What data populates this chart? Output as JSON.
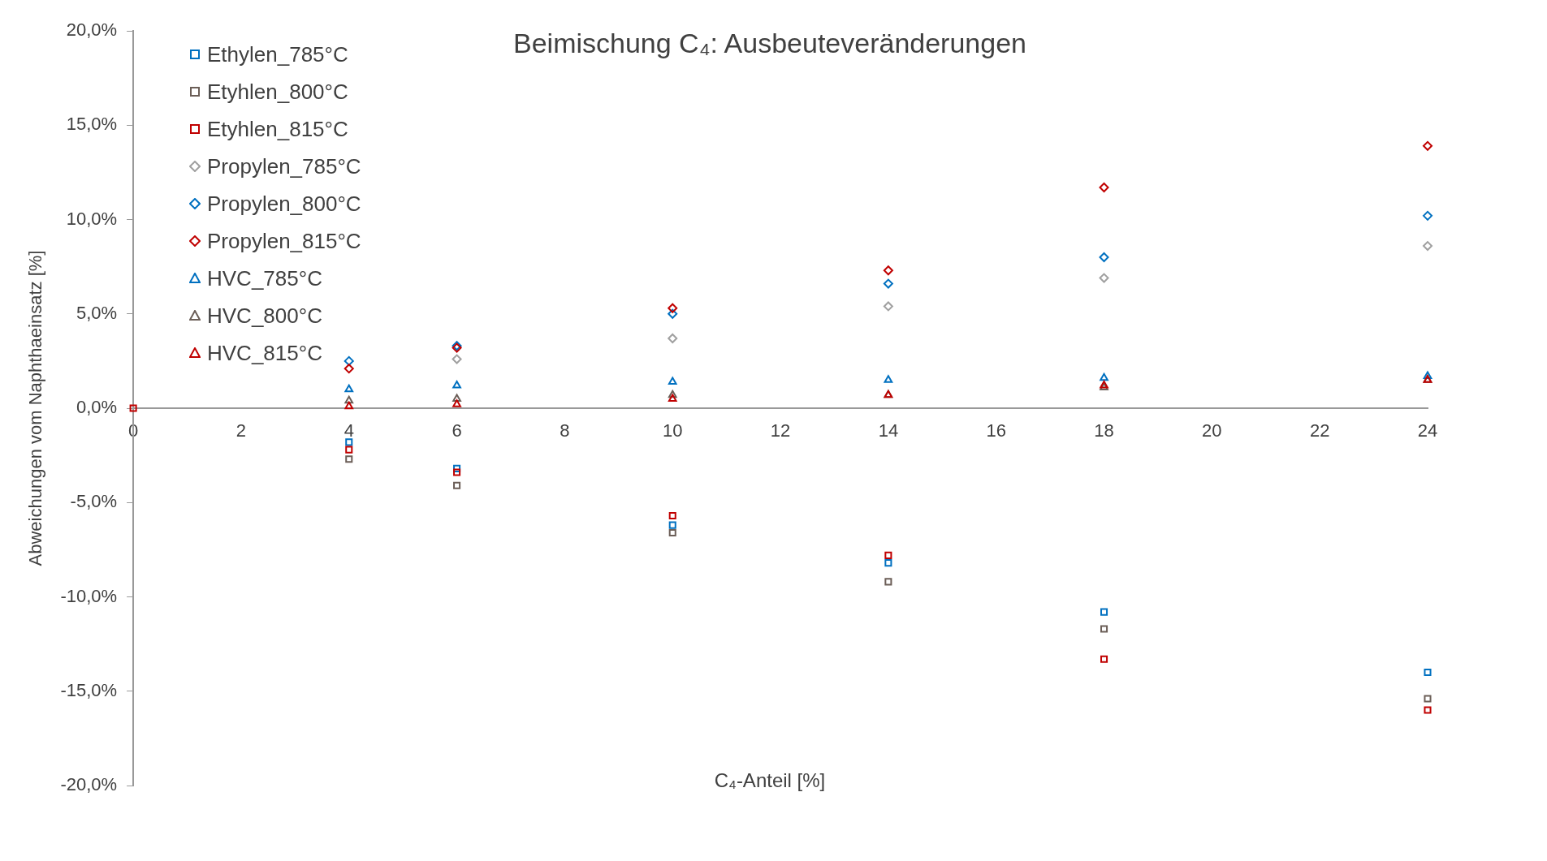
{
  "chart_data": {
    "type": "scatter",
    "title": "Beimischung C₄: Ausbeuteveränderungen",
    "xlabel": "C₄-Anteil  [%]",
    "ylabel": "Abweichungen vom Naphthaeinsatz [%]",
    "x": [
      0,
      4,
      6,
      10,
      14,
      18,
      24
    ],
    "xlim": [
      0,
      24
    ],
    "xticks": [
      0,
      2,
      4,
      6,
      8,
      10,
      12,
      14,
      16,
      18,
      20,
      22,
      24
    ],
    "ylim": [
      -20,
      20
    ],
    "yticks": [
      {
        "value": -20,
        "label": "-20,0%"
      },
      {
        "value": -15,
        "label": "-15,0%"
      },
      {
        "value": -10,
        "label": "-10,0%"
      },
      {
        "value": -5,
        "label": "-5,0%"
      },
      {
        "value": 0,
        "label": "0,0%"
      },
      {
        "value": 5,
        "label": "5,0%"
      },
      {
        "value": 10,
        "label": "10,0%"
      },
      {
        "value": 15,
        "label": "15,0%"
      },
      {
        "value": 20,
        "label": "20,0%"
      }
    ],
    "grid": false,
    "legend": "top left",
    "series": [
      {
        "name": "Ethylen_785°C",
        "color": "#0070c0",
        "marker": "square",
        "values": [
          null,
          -1.8,
          -3.2,
          -6.2,
          -8.2,
          -10.8,
          -14.0
        ]
      },
      {
        "name": "Etyhlen_800°C",
        "color": "#6b5e57",
        "marker": "square",
        "values": [
          null,
          -2.7,
          -4.1,
          -6.6,
          -9.2,
          -11.7,
          -15.4
        ]
      },
      {
        "name": "Etyhlen_815°C",
        "color": "#c00000",
        "marker": "square",
        "values": [
          0,
          -2.2,
          -3.4,
          -5.7,
          -7.8,
          -13.3,
          -16.0
        ]
      },
      {
        "name": "Propylen_785°C",
        "color": "#a0a0a0",
        "marker": "diamond",
        "values": [
          null,
          null,
          2.6,
          3.7,
          5.4,
          6.9,
          8.6
        ]
      },
      {
        "name": "Propylen_800°C",
        "color": "#0070c0",
        "marker": "diamond",
        "values": [
          null,
          2.5,
          3.3,
          5.0,
          6.6,
          8.0,
          10.2
        ]
      },
      {
        "name": "Propylen_815°C",
        "color": "#c00000",
        "marker": "diamond",
        "values": [
          null,
          2.1,
          3.2,
          5.3,
          7.3,
          11.7,
          13.9
        ]
      },
      {
        "name": "HVC_785°C",
        "color": "#0070c0",
        "marker": "triangle",
        "values": [
          null,
          1.0,
          1.2,
          1.4,
          1.5,
          1.6,
          1.7
        ]
      },
      {
        "name": "HVC_800°C",
        "color": "#6b5e57",
        "marker": "triangle",
        "values": [
          null,
          0.4,
          0.5,
          0.7,
          0.7,
          1.1,
          1.5
        ]
      },
      {
        "name": "HVC_815°C",
        "color": "#c00000",
        "marker": "triangle",
        "values": [
          null,
          0.1,
          0.2,
          0.5,
          0.7,
          1.2,
          1.5
        ]
      }
    ]
  }
}
